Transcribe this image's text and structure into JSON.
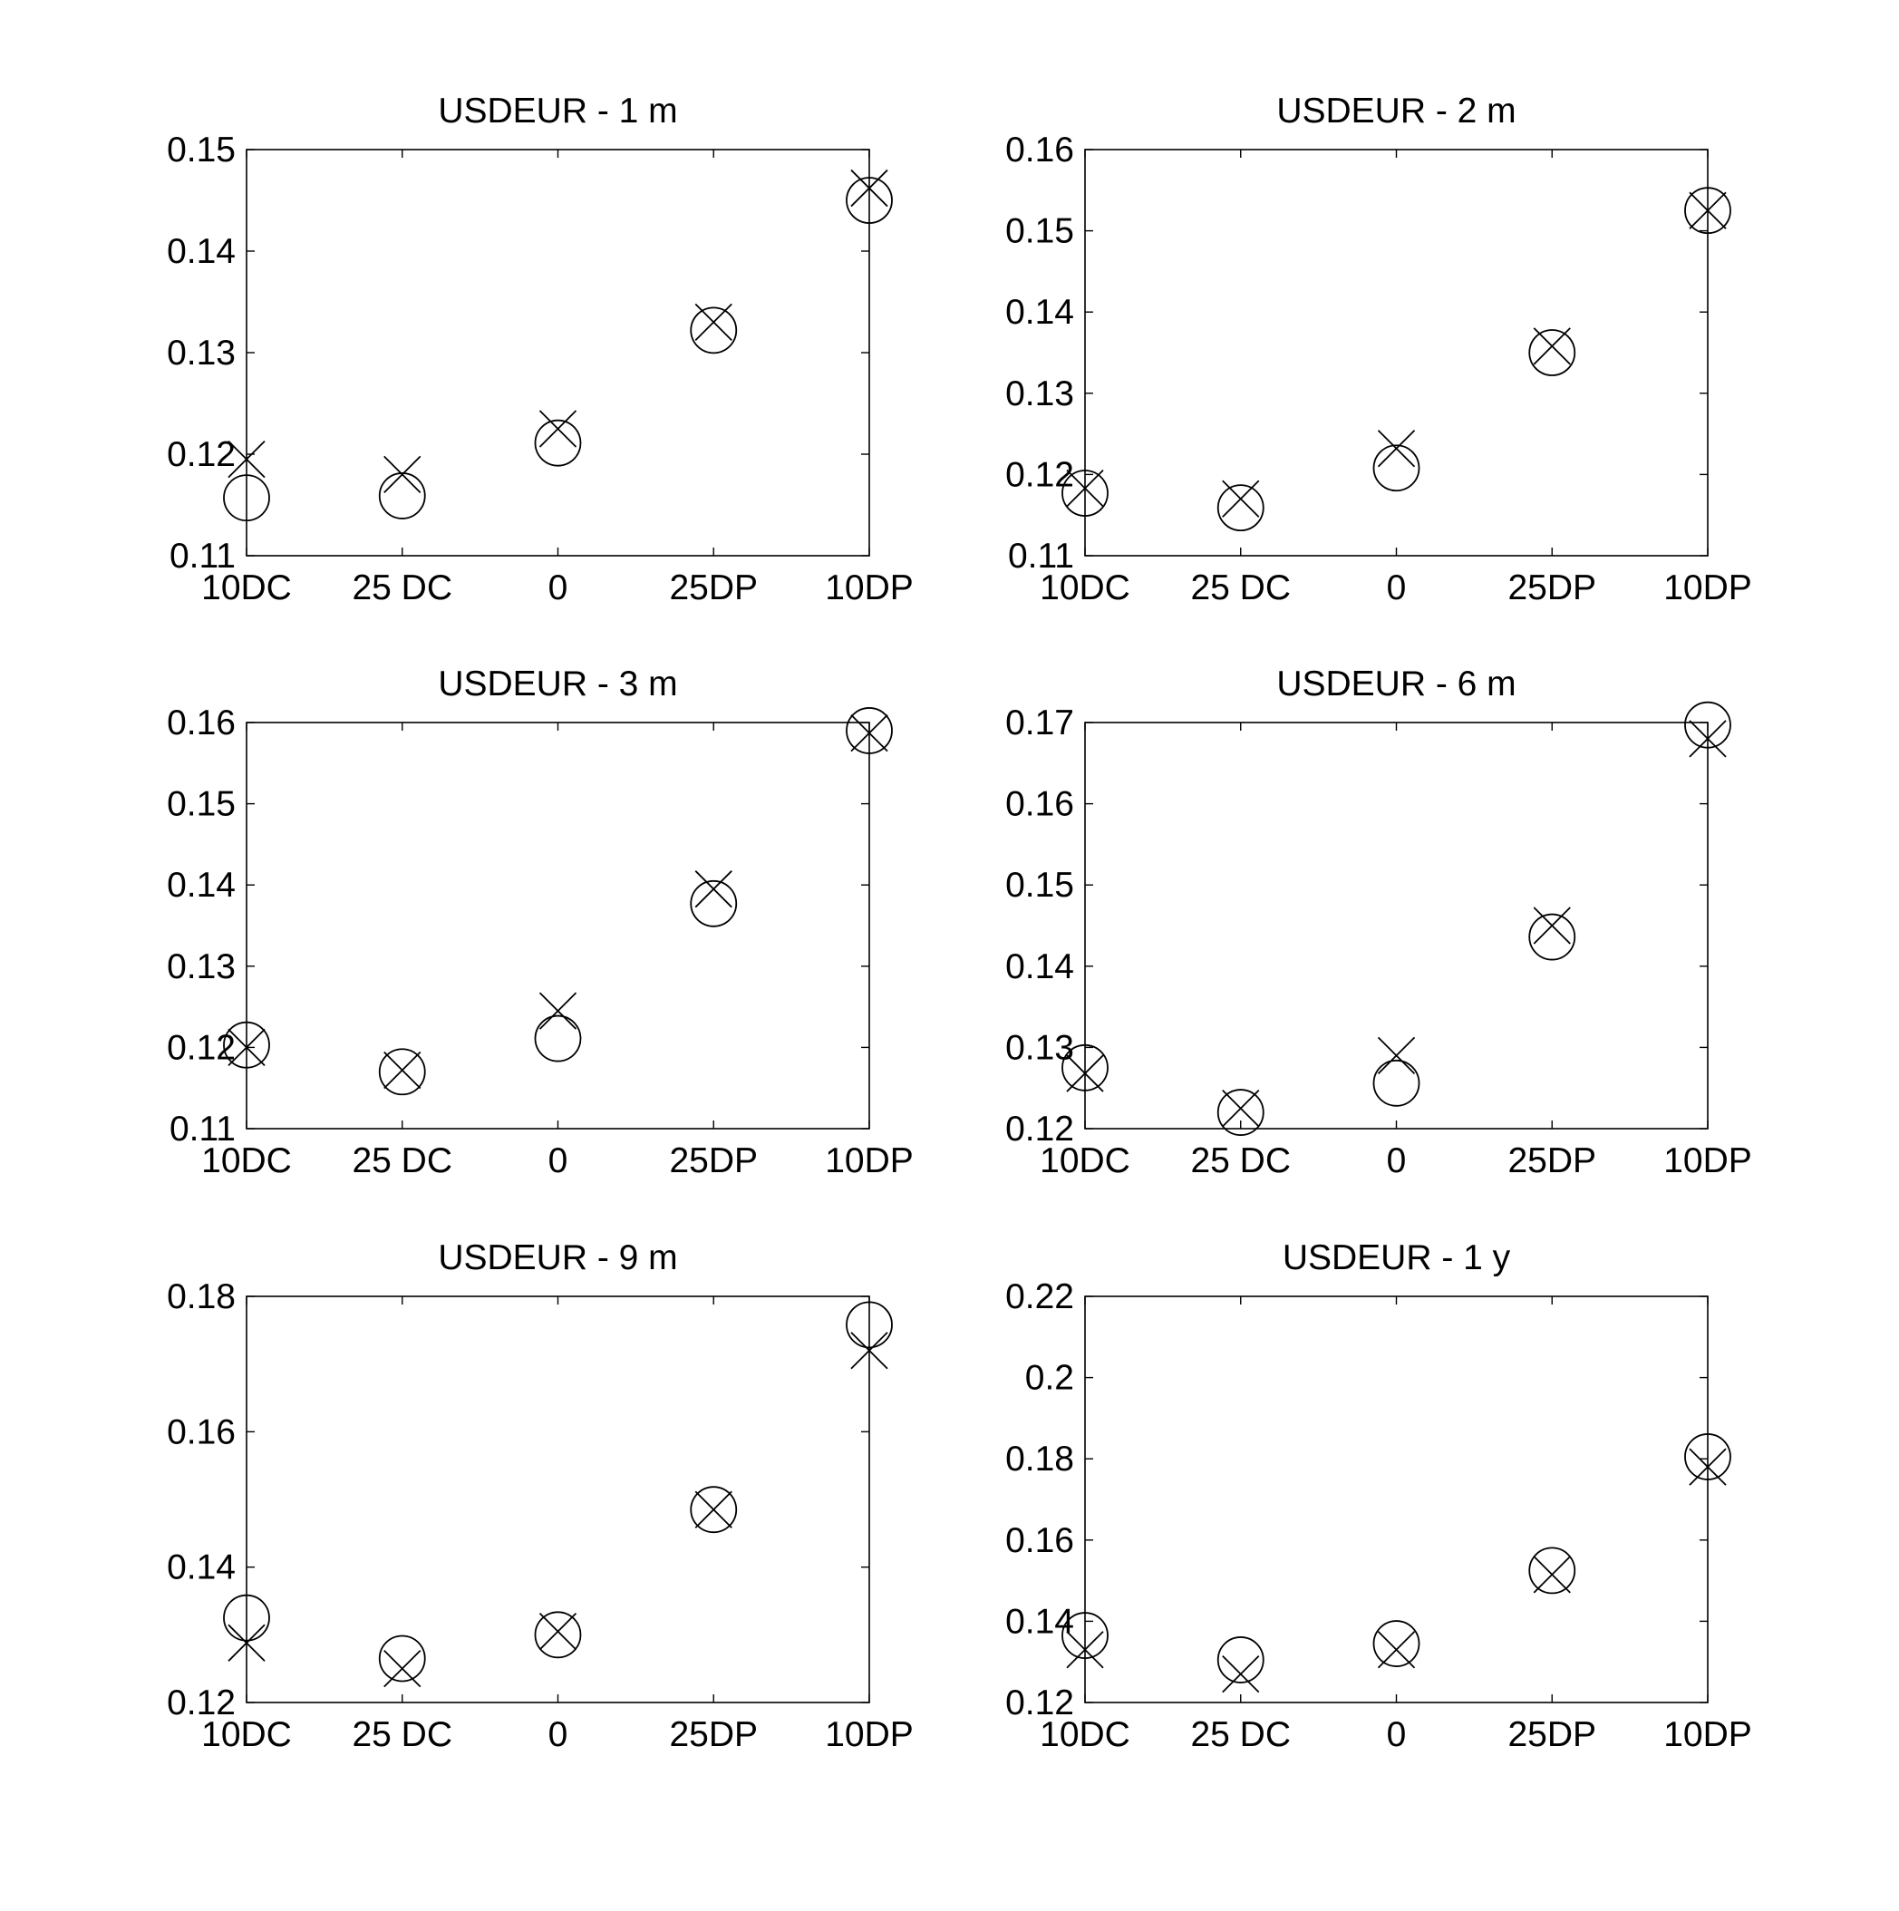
{
  "figure": {
    "background": "#ffffff",
    "ink": "#000000",
    "markers": {
      "circle": "circle",
      "cross": "x-cross"
    }
  },
  "chart_data": [
    {
      "type": "scatter",
      "title": "USDEUR - 1 m",
      "categories": [
        "10DC",
        "25 DC",
        "0",
        "25DP",
        "10DP"
      ],
      "ylim": [
        0.11,
        0.15
      ],
      "yticks": [
        0.11,
        0.12,
        0.13,
        0.14,
        0.15
      ],
      "ytick_labels": [
        "0.11",
        "0.12",
        "0.13",
        "0.14",
        "0.15"
      ],
      "grid": false,
      "series": [
        {
          "marker": "circle",
          "values": [
            0.1157,
            0.1159,
            0.1211,
            0.1322,
            0.145
          ]
        },
        {
          "marker": "x-cross",
          "values": [
            0.1195,
            0.118,
            0.1225,
            0.133,
            0.1462
          ]
        }
      ]
    },
    {
      "type": "scatter",
      "title": "USDEUR - 2 m",
      "categories": [
        "10DC",
        "25 DC",
        "0",
        "25DP",
        "10DP"
      ],
      "ylim": [
        0.11,
        0.16
      ],
      "yticks": [
        0.11,
        0.12,
        0.13,
        0.14,
        0.15,
        0.16
      ],
      "ytick_labels": [
        "0.11",
        "0.12",
        "0.13",
        "0.14",
        "0.15",
        "0.16"
      ],
      "grid": false,
      "series": [
        {
          "marker": "circle",
          "values": [
            0.1177,
            0.1159,
            0.1208,
            0.135,
            0.1525
          ]
        },
        {
          "marker": "x-cross",
          "values": [
            0.1183,
            0.117,
            0.1232,
            0.1358,
            0.1525
          ]
        }
      ]
    },
    {
      "type": "scatter",
      "title": "USDEUR - 3 m",
      "categories": [
        "10DC",
        "25 DC",
        "0",
        "25DP",
        "10DP"
      ],
      "ylim": [
        0.11,
        0.16
      ],
      "yticks": [
        0.11,
        0.12,
        0.13,
        0.14,
        0.15,
        0.16
      ],
      "ytick_labels": [
        "0.11",
        "0.12",
        "0.13",
        "0.14",
        "0.15",
        "0.16"
      ],
      "grid": false,
      "series": [
        {
          "marker": "circle",
          "values": [
            0.1203,
            0.117,
            0.1211,
            0.1377,
            0.159
          ]
        },
        {
          "marker": "x-cross",
          "values": [
            0.12,
            0.1172,
            0.1245,
            0.1395,
            0.1587
          ]
        }
      ]
    },
    {
      "type": "scatter",
      "title": "USDEUR - 6 m",
      "categories": [
        "10DC",
        "25 DC",
        "0",
        "25DP",
        "10DP"
      ],
      "ylim": [
        0.12,
        0.17
      ],
      "yticks": [
        0.12,
        0.13,
        0.14,
        0.15,
        0.16,
        0.17
      ],
      "ytick_labels": [
        "0.12",
        "0.13",
        "0.14",
        "0.15",
        "0.16",
        "0.17"
      ],
      "grid": false,
      "series": [
        {
          "marker": "circle",
          "values": [
            0.1275,
            0.122,
            0.1256,
            0.1436,
            0.1697
          ]
        },
        {
          "marker": "x-cross",
          "values": [
            0.1268,
            0.1225,
            0.129,
            0.145,
            0.168
          ]
        }
      ]
    },
    {
      "type": "scatter",
      "title": "USDEUR - 9 m",
      "categories": [
        "10DC",
        "25 DC",
        "0",
        "25DP",
        "10DP"
      ],
      "ylim": [
        0.12,
        0.18
      ],
      "yticks": [
        0.12,
        0.14,
        0.16,
        0.18
      ],
      "ytick_labels": [
        "0.12",
        "0.14",
        "0.16",
        "0.18"
      ],
      "grid": false,
      "series": [
        {
          "marker": "circle",
          "values": [
            0.1325,
            0.1265,
            0.13,
            0.1485,
            0.1758
          ]
        },
        {
          "marker": "x-cross",
          "values": [
            0.1288,
            0.125,
            0.1305,
            0.1485,
            0.172
          ]
        }
      ]
    },
    {
      "type": "scatter",
      "title": "USDEUR - 1 y",
      "categories": [
        "10DC",
        "25 DC",
        "0",
        "25DP",
        "10DP"
      ],
      "ylim": [
        0.12,
        0.22
      ],
      "yticks": [
        0.12,
        0.14,
        0.16,
        0.18,
        0.2,
        0.22
      ],
      "ytick_labels": [
        "0.12",
        "0.14",
        "0.16",
        "0.18",
        "0.2",
        "0.22"
      ],
      "grid": false,
      "series": [
        {
          "marker": "circle",
          "values": [
            0.1365,
            0.1305,
            0.1345,
            0.1525,
            0.1805
          ]
        },
        {
          "marker": "x-cross",
          "values": [
            0.133,
            0.127,
            0.133,
            0.1515,
            0.178
          ]
        }
      ]
    }
  ]
}
